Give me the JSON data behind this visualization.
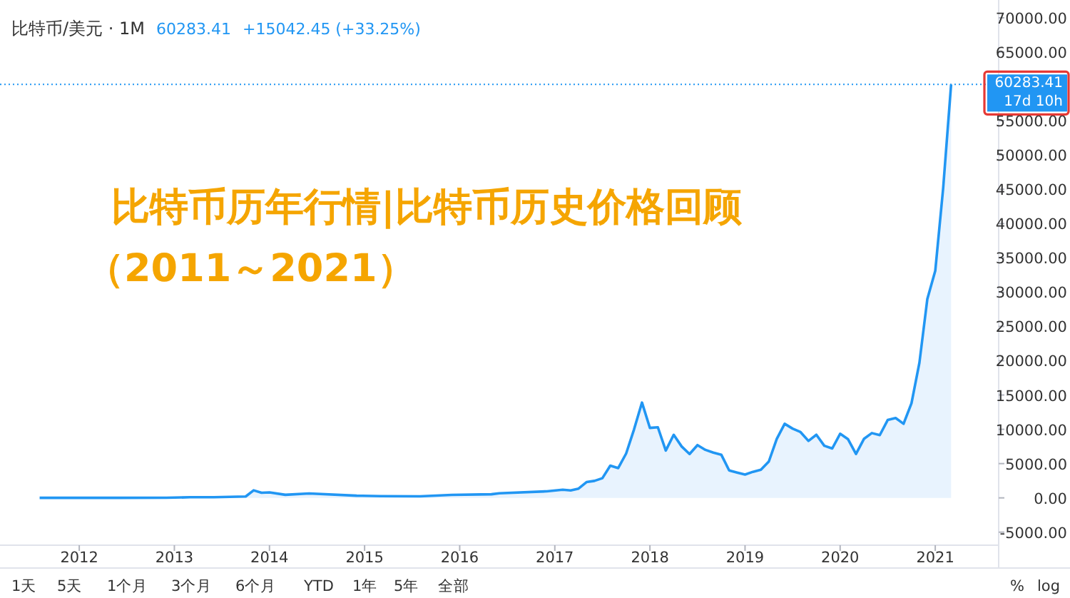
{
  "chart_data": {
    "type": "area",
    "title": "比特币历年行情|比特币历史价格回顾",
    "subtitle": "（2011～2021）",
    "x": [
      "2011-08",
      "2012-01",
      "2012-06",
      "2012-12",
      "2013-03",
      "2013-06",
      "2013-10",
      "2013-11",
      "2013-12",
      "2014-01",
      "2014-03",
      "2014-06",
      "2014-12",
      "2015-03",
      "2015-08",
      "2015-12",
      "2016-05",
      "2016-06",
      "2016-12",
      "2017-02",
      "2017-03",
      "2017-04",
      "2017-05",
      "2017-06",
      "2017-07",
      "2017-08",
      "2017-09",
      "2017-10",
      "2017-11",
      "2017-12",
      "2018-01",
      "2018-02",
      "2018-03",
      "2018-04",
      "2018-05",
      "2018-06",
      "2018-07",
      "2018-08",
      "2018-09",
      "2018-10",
      "2018-11",
      "2018-12",
      "2019-01",
      "2019-02",
      "2019-03",
      "2019-04",
      "2019-05",
      "2019-06",
      "2019-07",
      "2019-08",
      "2019-09",
      "2019-10",
      "2019-11",
      "2019-12",
      "2020-01",
      "2020-02",
      "2020-03",
      "2020-04",
      "2020-05",
      "2020-06",
      "2020-07",
      "2020-08",
      "2020-09",
      "2020-10",
      "2020-11",
      "2020-12",
      "2021-01",
      "2021-02",
      "2021-03"
    ],
    "series": [
      {
        "color": "#2196f3",
        "values": [
          8,
          6,
          7,
          13,
          93,
          100,
          200,
          1100,
          750,
          800,
          450,
          640,
          320,
          250,
          230,
          430,
          530,
          670,
          960,
          1190,
          1080,
          1350,
          2300,
          2480,
          2870,
          4700,
          4340,
          6470,
          10000,
          13900,
          10200,
          10300,
          6900,
          9200,
          7500,
          6400,
          7700,
          7000,
          6600,
          6300,
          4000,
          3700,
          3400,
          3800,
          4100,
          5300,
          8600,
          10800,
          10100,
          9600,
          8300,
          9200,
          7600,
          7200,
          9350,
          8550,
          6400,
          8600,
          9450,
          9150,
          11350,
          11650,
          10800,
          13800,
          19700,
          29000,
          33100,
          45200,
          60283.41
        ]
      }
    ],
    "xlim": [
      "2011-03",
      "2021-09"
    ],
    "xticks": [
      {
        "value": "2012-01",
        "label": "2012"
      },
      {
        "value": "2013-01",
        "label": "2013"
      },
      {
        "value": "2014-01",
        "label": "2014"
      },
      {
        "value": "2015-01",
        "label": "2015"
      },
      {
        "value": "2016-01",
        "label": "2016"
      },
      {
        "value": "2017-01",
        "label": "2017"
      },
      {
        "value": "2018-01",
        "label": "2018"
      },
      {
        "value": "2019-01",
        "label": "2019"
      },
      {
        "value": "2020-01",
        "label": "2020"
      },
      {
        "value": "2021-01",
        "label": "2021"
      }
    ],
    "ylim": [
      -6900,
      72600
    ],
    "yticks": [
      {
        "value": -5000,
        "label": "-5000.00"
      },
      {
        "value": 0,
        "label": "0.00"
      },
      {
        "value": 5000,
        "label": "5000.00"
      },
      {
        "value": 10000,
        "label": "10000.00"
      },
      {
        "value": 15000,
        "label": "15000.00"
      },
      {
        "value": 20000,
        "label": "20000.00"
      },
      {
        "value": 25000,
        "label": "25000.00"
      },
      {
        "value": 30000,
        "label": "30000.00"
      },
      {
        "value": 35000,
        "label": "35000.00"
      },
      {
        "value": 40000,
        "label": "40000.00"
      },
      {
        "value": 45000,
        "label": "45000.00"
      },
      {
        "value": 50000,
        "label": "50000.00"
      },
      {
        "value": 55000,
        "label": "55000.00"
      },
      {
        "value": 60000,
        "label": null
      },
      {
        "value": 65000,
        "label": "65000.00"
      },
      {
        "value": 70000,
        "label": "70000.00"
      }
    ],
    "ref_lines": [
      {
        "axis": "y",
        "value": 60283.41,
        "label": "60283.41",
        "color": "#2196f3",
        "line_style": "dotted"
      }
    ],
    "annotations": [
      "比特币/美元 · 1M",
      "60283.41",
      "+15042.45 (+33.25%)",
      "17d 10h",
      "1天",
      "5天",
      "1个月",
      "3个月",
      "6个月",
      "YTD",
      "1年",
      "5年",
      "全部",
      "%",
      "log"
    ],
    "grid": false
  }
}
